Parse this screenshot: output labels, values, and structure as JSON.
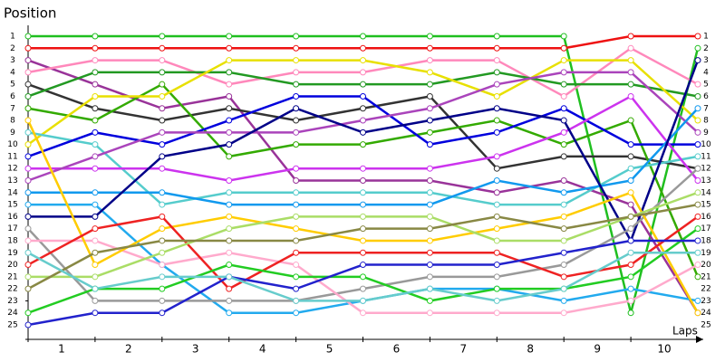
{
  "chart_data": {
    "type": "line",
    "y_label": "Position",
    "x_label": "Laps",
    "categories": [
      "1",
      "2",
      "3",
      "4",
      "5",
      "6",
      "7",
      "8",
      "9",
      "10"
    ],
    "x": [
      0,
      1,
      2,
      3,
      4,
      5,
      6,
      7,
      8,
      9,
      10
    ],
    "xlim": [
      0,
      10
    ],
    "ylim": [
      1,
      25
    ],
    "inverted_y": true,
    "yticks": [
      1,
      2,
      3,
      4,
      5,
      6,
      7,
      8,
      9,
      10,
      11,
      12,
      13,
      14,
      15,
      16,
      17,
      18,
      19,
      20,
      21,
      22,
      23,
      24,
      25
    ],
    "series": [
      {
        "color": "#1fbf1f",
        "values": [
          1,
          1,
          1,
          1,
          1,
          1,
          1,
          1,
          1,
          24,
          2
        ]
      },
      {
        "color": "#ee1111",
        "values": [
          2,
          2,
          2,
          2,
          2,
          2,
          2,
          2,
          2,
          1,
          1
        ]
      },
      {
        "color": "#993399",
        "values": [
          3,
          5,
          7,
          6,
          13,
          13,
          13,
          14,
          13,
          15,
          24
        ]
      },
      {
        "color": "#ff88bb",
        "values": [
          4,
          3,
          3,
          5,
          4,
          4,
          3,
          3,
          6,
          2,
          5
        ]
      },
      {
        "color": "#333333",
        "values": [
          5,
          7,
          8,
          7,
          8,
          7,
          6,
          12,
          11,
          11,
          12
        ]
      },
      {
        "color": "#229922",
        "values": [
          6,
          4,
          4,
          4,
          5,
          5,
          5,
          4,
          5,
          5,
          6
        ]
      },
      {
        "color": "#33aa00",
        "values": [
          7,
          8,
          5,
          11,
          10,
          10,
          9,
          8,
          10,
          8,
          21
        ]
      },
      {
        "color": "#e8e000",
        "values": [
          10,
          6,
          6,
          3,
          3,
          3,
          4,
          6,
          3,
          3,
          8
        ]
      },
      {
        "color": "#55cccc",
        "values": [
          9,
          10,
          15,
          14,
          14,
          14,
          14,
          15,
          15,
          12,
          11
        ]
      },
      {
        "color": "#0000dd",
        "values": [
          11,
          9,
          10,
          8,
          6,
          6,
          10,
          9,
          7,
          10,
          10
        ]
      },
      {
        "color": "#cc33ee",
        "values": [
          12,
          12,
          12,
          13,
          12,
          12,
          12,
          11,
          9,
          6,
          13
        ]
      },
      {
        "color": "#aa44bb",
        "values": [
          13,
          11,
          9,
          9,
          9,
          8,
          7,
          5,
          4,
          4,
          9
        ]
      },
      {
        "color": "#1199ee",
        "values": [
          14,
          14,
          14,
          15,
          15,
          15,
          15,
          13,
          14,
          13,
          7
        ]
      },
      {
        "color": "#22aaee",
        "values": [
          15,
          15,
          20,
          24,
          24,
          23,
          22,
          22,
          23,
          22,
          23
        ]
      },
      {
        "color": "#000088",
        "values": [
          16,
          16,
          11,
          10,
          7,
          9,
          8,
          7,
          8,
          18,
          3
        ]
      },
      {
        "color": "#999999",
        "values": [
          17,
          23,
          23,
          23,
          23,
          22,
          21,
          21,
          20,
          17,
          12
        ]
      },
      {
        "color": "#ffaacc",
        "values": [
          18,
          18,
          20,
          19,
          20,
          24,
          24,
          24,
          24,
          23,
          20
        ]
      },
      {
        "color": "#ffcc00",
        "values": [
          8,
          20,
          17,
          16,
          17,
          18,
          18,
          17,
          16,
          14,
          24
        ]
      },
      {
        "color": "#ee2222",
        "values": [
          20,
          17,
          16,
          22,
          19,
          19,
          19,
          19,
          21,
          20,
          16
        ]
      },
      {
        "color": "#aadd66",
        "values": [
          21,
          21,
          19,
          17,
          16,
          16,
          16,
          18,
          18,
          16,
          14
        ]
      },
      {
        "color": "#888844",
        "values": [
          22,
          19,
          18,
          18,
          18,
          17,
          17,
          16,
          17,
          16,
          15
        ]
      },
      {
        "color": "#22cc22",
        "values": [
          24,
          22,
          22,
          20,
          21,
          21,
          23,
          22,
          22,
          21,
          17
        ]
      },
      {
        "color": "#2222cc",
        "values": [
          25,
          24,
          24,
          21,
          22,
          20,
          20,
          20,
          19,
          18,
          18
        ]
      },
      {
        "color": "#66cccc",
        "values": [
          19,
          22,
          21,
          21,
          23,
          23,
          22,
          23,
          22,
          19,
          19
        ]
      }
    ]
  }
}
